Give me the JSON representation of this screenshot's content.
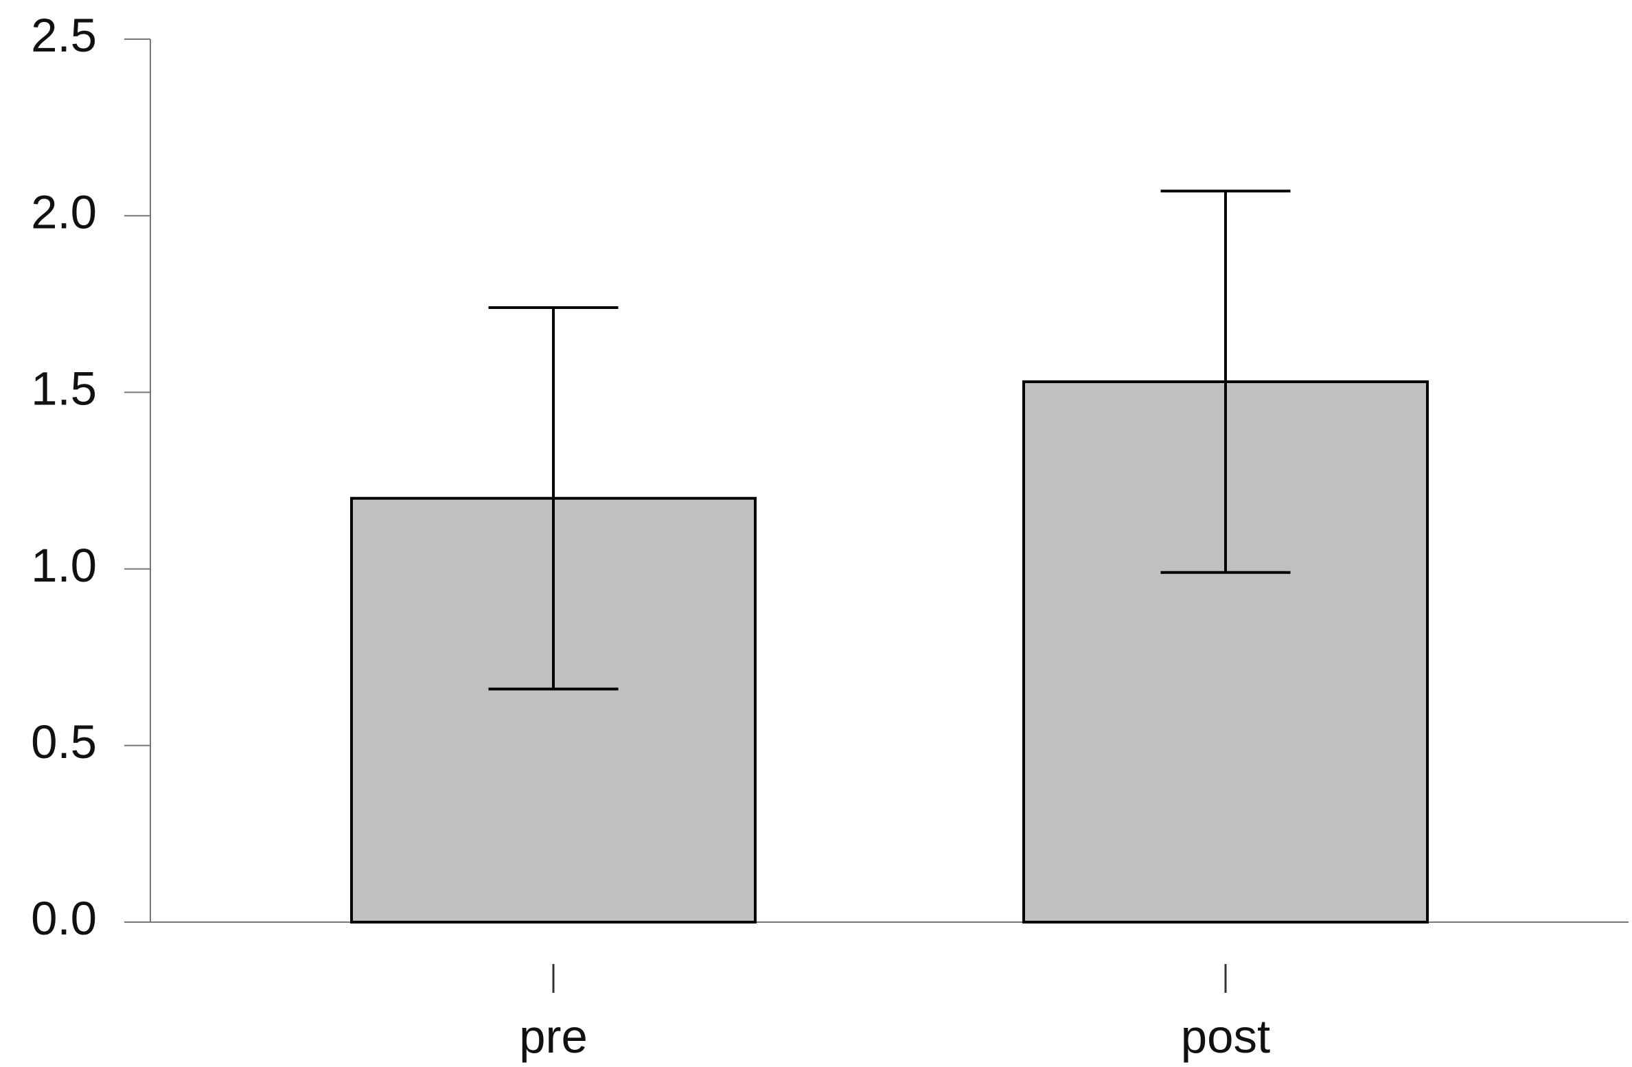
{
  "chart_data": {
    "type": "bar",
    "categories": [
      "pre",
      "post"
    ],
    "values": [
      1.2,
      1.53
    ],
    "errors": [
      0.54,
      0.54
    ],
    "color": "#c0c0c0",
    "ylim": [
      0,
      2.5
    ],
    "yticks": [
      {
        "value": 0,
        "label": "0.0"
      },
      {
        "value": 0.5,
        "label": "0.5"
      },
      {
        "value": 1,
        "label": "1.0"
      },
      {
        "value": 1.5,
        "label": "1.5"
      },
      {
        "value": 2,
        "label": "2.0"
      },
      {
        "value": 2.5,
        "label": "2.5"
      }
    ],
    "grid": false
  }
}
